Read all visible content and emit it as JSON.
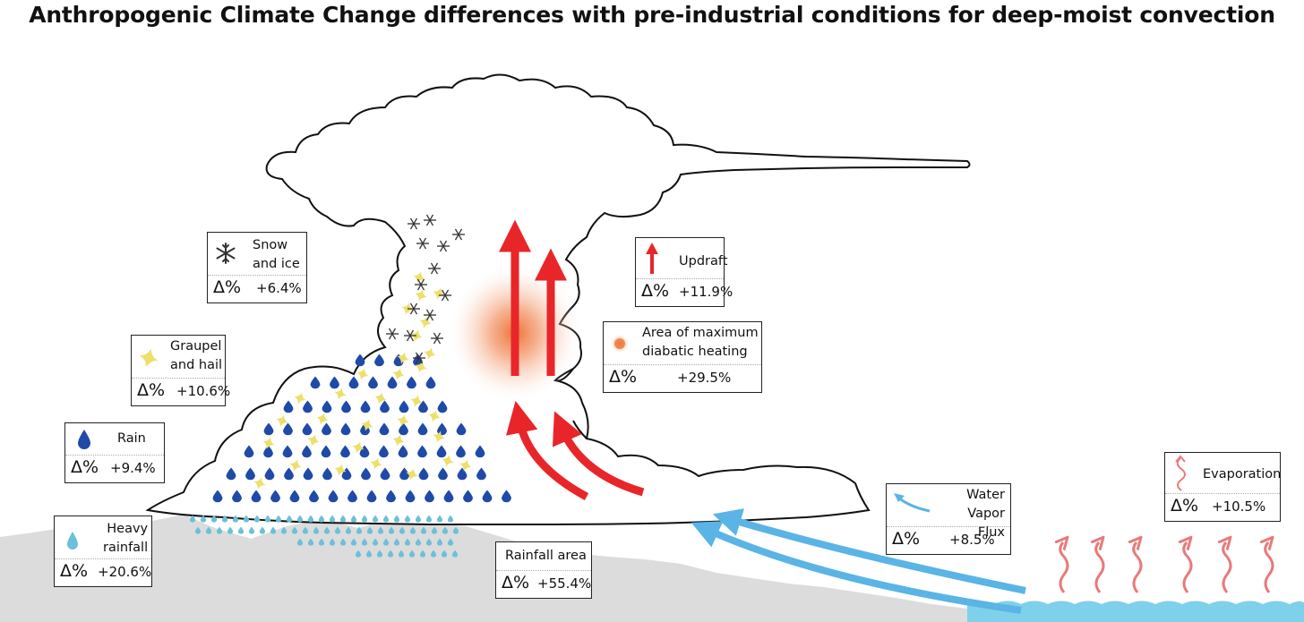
{
  "title": "Anthropogenic Climate Change differences with pre-industrial conditions for deep-moist convection",
  "delta_symbol": "Δ%",
  "legend": {
    "snow": {
      "label_l1": "Snow",
      "label_l2": "and ice",
      "value": "+6.4%",
      "icon": "snowflake-icon"
    },
    "graupel": {
      "label_l1": "Graupel",
      "label_l2": "and hail",
      "value": "+10.6%",
      "icon": "star-icon"
    },
    "rain": {
      "label_l1": "Rain",
      "value": "+9.4%",
      "icon": "raindrop-icon"
    },
    "heavy": {
      "label_l1": "Heavy",
      "label_l2": "rainfall",
      "value": "+20.6%",
      "icon": "light-raindrop-icon"
    },
    "rainfall_area": {
      "label_l1": "Rainfall area",
      "value": "+55.4%"
    },
    "updraft": {
      "label_l1": "Updraft",
      "value": "+11.9%",
      "icon": "red-arrow-icon"
    },
    "heating": {
      "label_l1": "Area of maximum",
      "label_l2": "diabatic heating",
      "value": "+29.5%",
      "icon": "heat-spot-icon"
    },
    "vapor": {
      "label_l1": "Water",
      "label_l2": "Vapor Flux",
      "value": "+8.5%",
      "icon": "blue-arrow-icon"
    },
    "evaporation": {
      "label_l1": "Evaporation",
      "value": "+10.5%",
      "icon": "wavy-arrow-icon"
    }
  },
  "colors": {
    "updraft": "#e8262a",
    "vapor": "#5ab4e6",
    "evaporation": "#e87a7a",
    "rain": "#1f4aa8",
    "heavy_rain": "#6cc0d8",
    "graupel": "#ece06a",
    "snow": "#333333",
    "ground": "#dcdcdc",
    "sea": "#7fd0ea",
    "heating": "#f07840"
  }
}
